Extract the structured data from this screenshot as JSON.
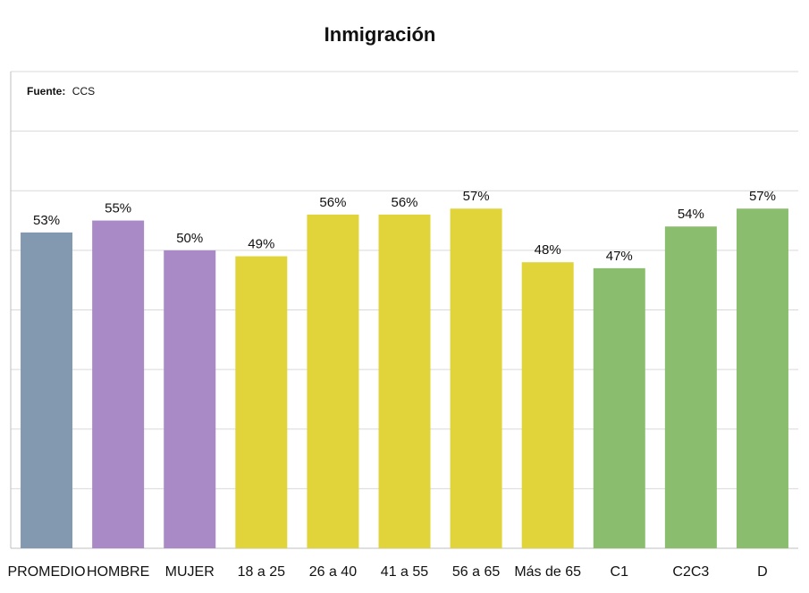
{
  "colors": {
    "promedio": "#8399b0",
    "sexo": "#a98ac7",
    "edad": "#e0d43a",
    "gse": "#8bbd6e"
  },
  "source": {
    "label": "Fuente:",
    "value": "CCS"
  },
  "chart_data": {
    "type": "bar",
    "title": "Inmigración",
    "xlabel": "",
    "ylabel": "",
    "ylim": [
      0,
      80
    ],
    "grid": true,
    "categories": [
      "PROMEDIO",
      "HOMBRE",
      "MUJER",
      "18 a 25",
      "26 a 40",
      "41 a 55",
      "56 a 65",
      "Más de 65",
      "C1",
      "C2C3",
      "D"
    ],
    "values": [
      53,
      55,
      50,
      49,
      56,
      56,
      57,
      48,
      47,
      54,
      57
    ],
    "labels": [
      "53%",
      "55%",
      "50%",
      "49%",
      "56%",
      "56%",
      "57%",
      "48%",
      "47%",
      "54%",
      "57%"
    ],
    "bar_colors": [
      "#8399b0",
      "#a98ac7",
      "#a98ac7",
      "#e0d43a",
      "#e0d43a",
      "#e0d43a",
      "#e0d43a",
      "#e0d43a",
      "#8bbd6e",
      "#8bbd6e",
      "#8bbd6e"
    ]
  }
}
